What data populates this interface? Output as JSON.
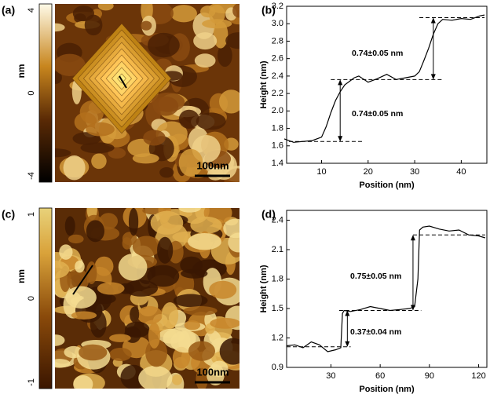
{
  "chart_data": [
    {
      "type": "line",
      "panel": "(b)",
      "xlabel": "Position (nm)",
      "ylabel": "Height (nm)",
      "x": [
        2,
        4,
        6,
        8,
        10,
        11,
        12,
        13,
        14,
        15,
        16,
        17,
        18,
        20,
        22,
        24,
        26,
        28,
        30,
        31,
        32,
        33,
        34,
        35,
        36,
        38,
        40,
        42,
        44,
        45
      ],
      "series": [
        {
          "color": "#000000",
          "values": [
            1.68,
            1.64,
            1.65,
            1.66,
            1.7,
            1.82,
            1.98,
            2.12,
            2.22,
            2.3,
            2.34,
            2.38,
            2.4,
            2.33,
            2.37,
            2.42,
            2.36,
            2.38,
            2.4,
            2.45,
            2.58,
            2.72,
            2.88,
            3.0,
            3.05,
            3.04,
            3.06,
            3.05,
            3.09,
            3.1
          ]
        }
      ],
      "xlim": [
        2.5,
        45.5
      ],
      "xticks": [
        10,
        20,
        30,
        40
      ],
      "ylim": [
        1.4,
        3.2
      ],
      "yticks": [
        1.4,
        1.6,
        1.8,
        {
          "value": 2,
          "label": "2.0"
        },
        2.2,
        2.4,
        2.6,
        2.8,
        {
          "value": 3,
          "label": "3.0"
        },
        3.2
      ],
      "reference_lines": [
        {
          "value": 1.65,
          "x": [
            3,
            19
          ]
        },
        {
          "value": 2.36,
          "x": [
            12,
            36
          ]
        },
        {
          "value": 3.07,
          "x": [
            31,
            45
          ]
        }
      ],
      "arrows": [
        {
          "x": 14,
          "y": [
            1.65,
            2.36
          ]
        },
        {
          "x": 34,
          "y": [
            2.36,
            3.07
          ]
        }
      ],
      "annotations": [
        "0.74±0.05 nm",
        "0.74±0.05 nm"
      ]
    },
    {
      "type": "line",
      "panel": "(d)",
      "xlabel": "Position (nm)",
      "ylabel": "Height (nm)",
      "x": [
        3,
        8,
        13,
        18,
        23,
        28,
        33,
        36,
        37,
        38,
        42,
        48,
        54,
        60,
        66,
        72,
        78,
        81,
        83,
        84,
        86,
        90,
        96,
        102,
        108,
        114,
        120,
        124
      ],
      "series": [
        {
          "color": "#000000",
          "values": [
            1.12,
            1.13,
            1.1,
            1.16,
            1.13,
            1.06,
            1.08,
            1.1,
            1.45,
            1.48,
            1.47,
            1.49,
            1.52,
            1.5,
            1.48,
            1.49,
            1.5,
            1.52,
            1.8,
            2.3,
            2.33,
            2.34,
            2.31,
            2.29,
            2.3,
            2.25,
            2.24,
            2.22
          ]
        }
      ],
      "xlim": [
        3,
        125
      ],
      "xticks": [
        30,
        60,
        90,
        120
      ],
      "ylim": [
        0.9,
        2.5
      ],
      "yticks": [
        0.9,
        1.2,
        1.5,
        1.8,
        2.1,
        2.4
      ],
      "reference_lines": [
        {
          "value": 1.11,
          "x": [
            3,
            42
          ]
        },
        {
          "value": 1.48,
          "x": [
            35,
            85
          ]
        },
        {
          "value": 2.25,
          "x": [
            80,
            124
          ]
        }
      ],
      "arrows": [
        {
          "x": 40,
          "y": [
            1.11,
            1.48
          ]
        },
        {
          "x": 80,
          "y": [
            1.48,
            2.25
          ]
        }
      ],
      "annotations": [
        "0.37±0.04 nm",
        "0.75±0.05 nm"
      ]
    }
  ],
  "images": [
    {
      "panel": "(a)",
      "colorbar_ticks": [
        "4",
        "0",
        "-4"
      ],
      "unit": "nm",
      "scale_bar": "100nm"
    },
    {
      "panel": "(c)",
      "colorbar_ticks": [
        "1",
        "0",
        "-1"
      ],
      "unit": "nm",
      "scale_bar": "100nm"
    }
  ]
}
